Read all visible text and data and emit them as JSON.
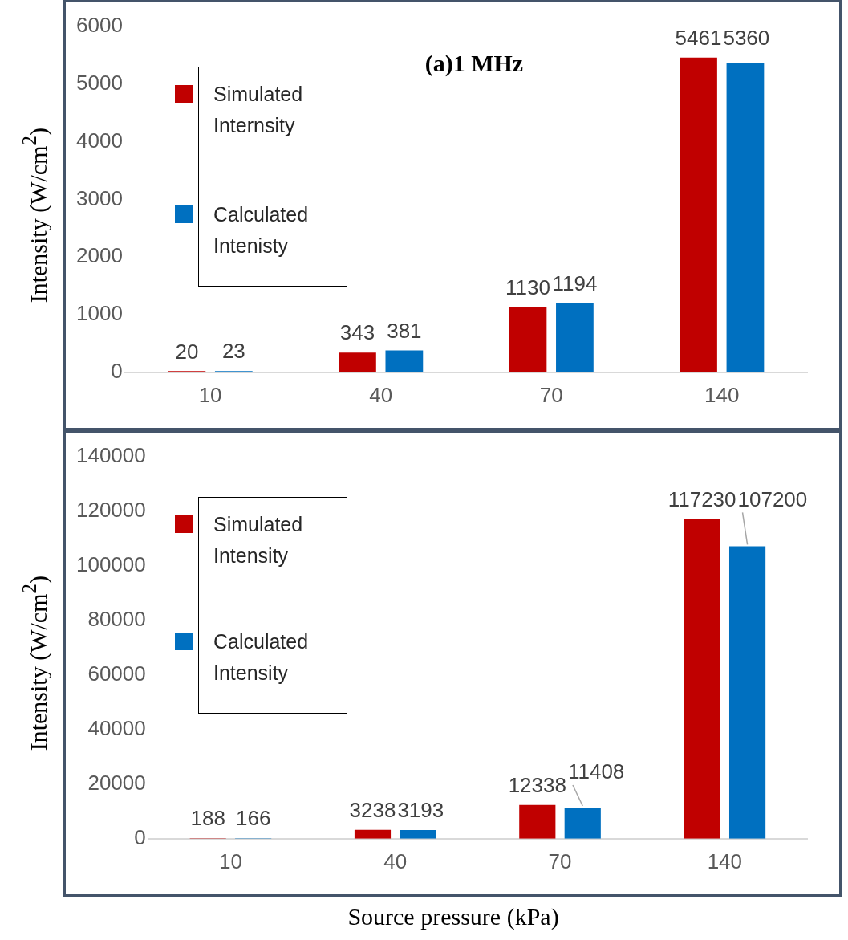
{
  "chart_data": [
    {
      "type": "bar",
      "title": "(a)1 MHz",
      "ylabel": "Intensity (W/cm$^{2}$)",
      "categories": [
        "10",
        "40",
        "70",
        "140"
      ],
      "series": [
        {
          "name": "Simulated Internsity",
          "color": "#c00000",
          "values": [
            20,
            343,
            1130,
            5461
          ]
        },
        {
          "name": "Calculated Intenisty",
          "color": "#0070c0",
          "values": [
            23,
            381,
            1194,
            5360
          ]
        }
      ],
      "ylim": [
        0,
        6000
      ],
      "yticks": [
        0,
        1000,
        2000,
        3000,
        4000,
        5000,
        6000
      ],
      "data_labels": true,
      "legend": "top left"
    },
    {
      "type": "bar",
      "xlabel": "Source pressure (kPa)",
      "ylabel": "Intensity (W/cm$^{2}$)",
      "categories": [
        "10",
        "40",
        "70",
        "140"
      ],
      "series": [
        {
          "name": "Simulated Intensity",
          "color": "#c00000",
          "values": [
            188,
            3238,
            12338,
            117230
          ]
        },
        {
          "name": "Calculated Intensity",
          "color": "#0070c0",
          "values": [
            166,
            3193,
            11408,
            107200
          ]
        }
      ],
      "ylim": [
        0,
        140000
      ],
      "yticks": [
        0,
        20000,
        40000,
        60000,
        80000,
        100000,
        120000,
        140000
      ],
      "data_labels": true,
      "legend": "top left"
    }
  ]
}
